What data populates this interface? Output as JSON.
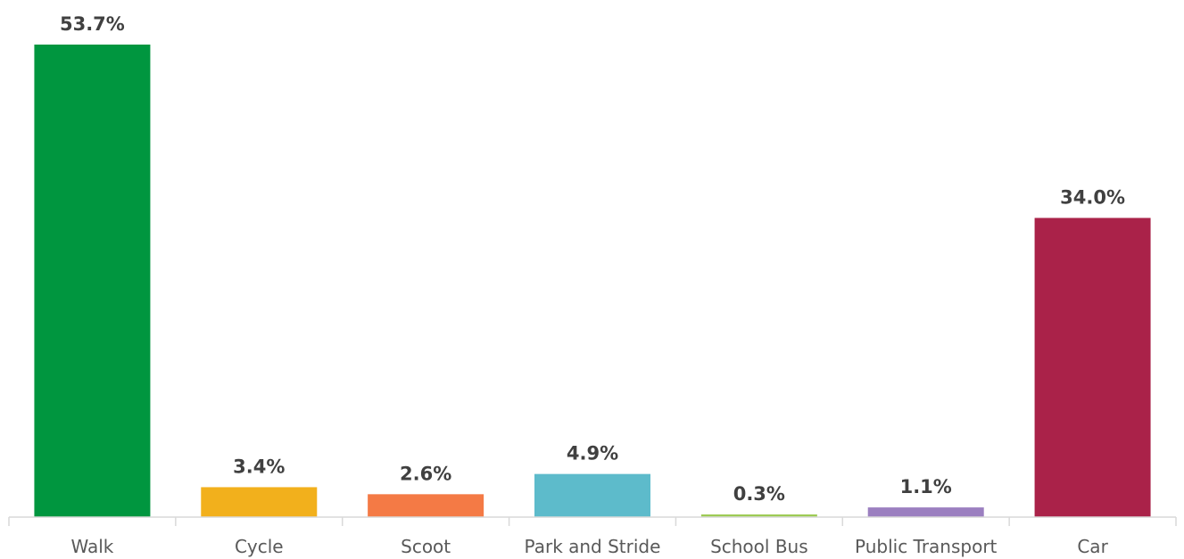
{
  "chart_data": {
    "type": "bar",
    "categories": [
      "Walk",
      "Cycle",
      "Scoot",
      "Park and Stride",
      "School Bus",
      "Public Transport",
      "Car"
    ],
    "values": [
      53.7,
      3.4,
      2.6,
      4.9,
      0.3,
      1.1,
      34.0
    ],
    "value_labels": [
      "53.7%",
      "3.4%",
      "2.6%",
      "4.9%",
      "0.3%",
      "1.1%",
      "34.0%"
    ],
    "colors": [
      "#00963F",
      "#F2B01C",
      "#F47A45",
      "#5DBBCB",
      "#9CCA52",
      "#9B7FC0",
      "#AA2249"
    ],
    "ylim": [
      0,
      53.7
    ],
    "title": "",
    "xlabel": "",
    "ylabel": "",
    "grid": false,
    "legend": "none"
  }
}
